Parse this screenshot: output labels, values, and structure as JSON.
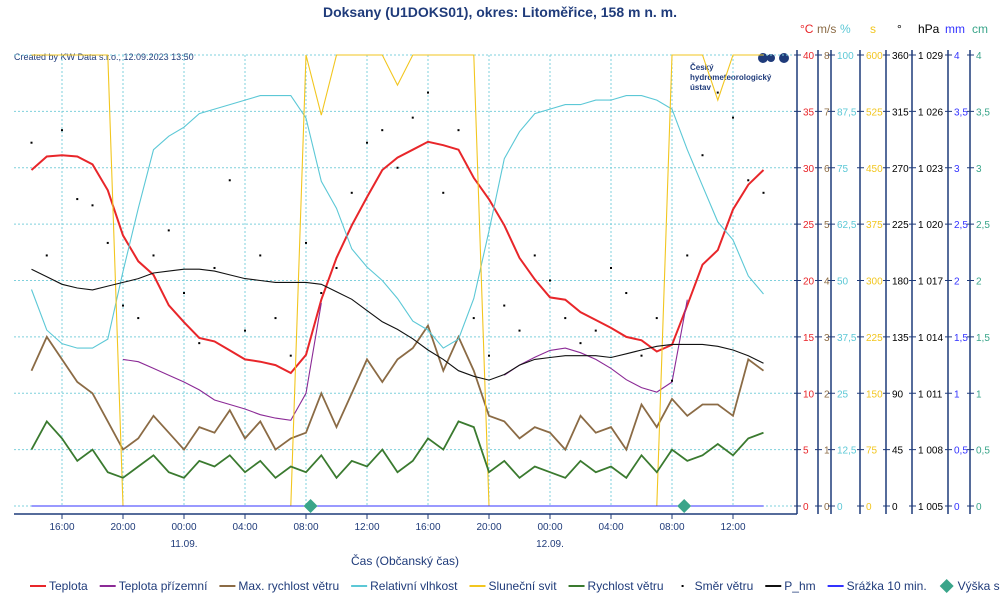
{
  "title": "Doksany (U1DOKS01), okres: Litoměřice, 158 m n. m.",
  "created": "Created by KW Data s.r.o., 12.09.2023 13:50",
  "logo": {
    "line1": "Český",
    "line2": "hydrometeorologický",
    "line3": "ústav"
  },
  "chart_data": {
    "type": "line",
    "xlabel": "Čas (Občanský čas)",
    "x_hours_from_2023_09_10_00": [
      14,
      15,
      16,
      17,
      18,
      19,
      20,
      21,
      22,
      23,
      24,
      25,
      26,
      27,
      28,
      29,
      30,
      31,
      32,
      33,
      34,
      35,
      36,
      37,
      38,
      39,
      40,
      41,
      42,
      43,
      44,
      45,
      46,
      47,
      48,
      49,
      50,
      51,
      52,
      53,
      54,
      55,
      56,
      57,
      58,
      59,
      60,
      61,
      62
    ],
    "x_ticks": [
      {
        "t": 16,
        "label": "16:00"
      },
      {
        "t": 20,
        "label": "20:00"
      },
      {
        "t": 24,
        "label": "00:00",
        "date": "11.09."
      },
      {
        "t": 28,
        "label": "04:00"
      },
      {
        "t": 32,
        "label": "08:00"
      },
      {
        "t": 36,
        "label": "12:00"
      },
      {
        "t": 40,
        "label": "16:00"
      },
      {
        "t": 44,
        "label": "20:00"
      },
      {
        "t": 48,
        "label": "00:00",
        "date": "12.09."
      },
      {
        "t": 52,
        "label": "04:00"
      },
      {
        "t": 56,
        "label": "08:00"
      },
      {
        "t": 60,
        "label": "12:00"
      }
    ],
    "axes": [
      {
        "unit": "°C",
        "color": "#e8262a",
        "min": 0,
        "max": 40,
        "ticks": [
          "0",
          "5",
          "10",
          "15",
          "20",
          "25",
          "30",
          "35",
          "40"
        ]
      },
      {
        "unit": "m/s",
        "color": "#8b6b45",
        "min": 0,
        "max": 8,
        "ticks": [
          "0",
          "1",
          "2",
          "3",
          "4",
          "5",
          "6",
          "7",
          "8"
        ]
      },
      {
        "unit": "%",
        "color": "#5cc8d6",
        "min": 0,
        "max": 100,
        "ticks": [
          "0",
          "12,5",
          "25",
          "37,5",
          "50",
          "62,5",
          "75",
          "87,5",
          "100"
        ]
      },
      {
        "unit": "s",
        "color": "#f2c61f",
        "min": 0,
        "max": 600,
        "ticks": [
          "0",
          "75",
          "150",
          "225",
          "300",
          "375",
          "450",
          "525",
          "600"
        ]
      },
      {
        "unit": "°",
        "color": "#000000",
        "min": 0,
        "max": 360,
        "ticks": [
          "0",
          "45",
          "90",
          "135",
          "180",
          "225",
          "270",
          "315",
          "360"
        ]
      },
      {
        "unit": "hPa",
        "color": "#000000",
        "min": 1005,
        "max": 1029,
        "ticks": [
          "1 005",
          "1 008",
          "1 011",
          "1 014",
          "1 017",
          "1 020",
          "1 023",
          "1 026",
          "1 029"
        ]
      },
      {
        "unit": "mm",
        "color": "#3333ff",
        "min": 0,
        "max": 4,
        "ticks": [
          "0",
          "0,5",
          "1",
          "1,5",
          "2",
          "2,5",
          "3",
          "3,5",
          "4"
        ]
      },
      {
        "unit": "cm",
        "color": "#3aa58a",
        "min": 0,
        "max": 4,
        "ticks": [
          "0",
          "0,5",
          "1",
          "1,5",
          "2",
          "2,5",
          "3",
          "3,5",
          "4"
        ]
      }
    ],
    "series": [
      {
        "name": "Teplota",
        "axis": 0,
        "color": "#e8262a",
        "kind": "line",
        "values": [
          29.8,
          31.0,
          31.1,
          31.0,
          30.3,
          28,
          24,
          21.7,
          20.5,
          17.8,
          16.3,
          14.9,
          14.6,
          13.8,
          13,
          12.8,
          12.5,
          11.8,
          13.4,
          18.3,
          22,
          24.9,
          27.4,
          29.8,
          30.9,
          31.6,
          32.3,
          32,
          31.6,
          29.1,
          27.2,
          24.9,
          22,
          20.1,
          18.5,
          18.3,
          17.2,
          16.5,
          15.8,
          15,
          14.7,
          13.7,
          14.3,
          17.8,
          21.4,
          22.7,
          26.3,
          28.5,
          29.8
        ]
      },
      {
        "name": "Teplota přízemní",
        "axis": 0,
        "color": "#8b2a96",
        "kind": "line",
        "values": [
          null,
          null,
          null,
          null,
          null,
          null,
          13,
          12.8,
          12.2,
          11.6,
          11,
          10.3,
          9.4,
          9,
          8.6,
          8.1,
          7.8,
          7.6,
          10,
          18,
          null,
          null,
          null,
          null,
          null,
          null,
          null,
          null,
          null,
          null,
          null,
          11.6,
          12.5,
          13.2,
          13.8,
          14,
          13.6,
          13,
          12.2,
          11.2,
          10.5,
          10.1,
          11,
          18.3,
          null,
          null,
          null,
          null,
          null
        ]
      },
      {
        "name": "Max. rychlost větru",
        "axis": 1,
        "color": "#8b6b45",
        "kind": "line",
        "values": [
          2.4,
          3.0,
          2.6,
          2.2,
          2.0,
          1.5,
          1.0,
          1.2,
          1.6,
          1.3,
          1.0,
          1.4,
          1.3,
          1.7,
          1.2,
          1.5,
          1.0,
          1.2,
          1.3,
          2.0,
          1.4,
          2.0,
          2.6,
          2.2,
          2.6,
          2.8,
          3.2,
          2.4,
          3.0,
          2.4,
          1.6,
          1.5,
          1.2,
          1.4,
          1.3,
          1.0,
          1.6,
          1.3,
          1.4,
          1.0,
          1.8,
          1.4,
          1.9,
          1.6,
          1.8,
          1.8,
          1.6,
          2.6,
          2.4
        ]
      },
      {
        "name": "Relativní vlhkost",
        "axis": 2,
        "color": "#5cc8d6",
        "kind": "line",
        "values": [
          48,
          39,
          36,
          35,
          35,
          37,
          52,
          66,
          79,
          82,
          84,
          87,
          88,
          89,
          90,
          91,
          91,
          91,
          86,
          72,
          66,
          57,
          53,
          50,
          46,
          41,
          39,
          35,
          37,
          46,
          61,
          77,
          83,
          87,
          88,
          89,
          89,
          90,
          90,
          91,
          91,
          90,
          88,
          79,
          71,
          63,
          59,
          51,
          47
        ]
      },
      {
        "name": "Sluneční svit",
        "axis": 3,
        "color": "#f2c61f",
        "kind": "line",
        "values": [
          600,
          600,
          600,
          600,
          600,
          600,
          0,
          0,
          0,
          0,
          0,
          0,
          0,
          0,
          0,
          0,
          0,
          0,
          600,
          520,
          600,
          600,
          600,
          600,
          560,
          600,
          600,
          600,
          600,
          600,
          0,
          0,
          0,
          0,
          0,
          0,
          0,
          0,
          0,
          0,
          0,
          0,
          600,
          600,
          600,
          540,
          600,
          600,
          600
        ]
      },
      {
        "name": "Rychlost větru",
        "axis": 1,
        "color": "#3a7a2f",
        "kind": "line",
        "values": [
          1.0,
          1.5,
          1.2,
          0.8,
          1.0,
          0.6,
          0.5,
          0.7,
          0.9,
          0.6,
          0.5,
          0.8,
          0.7,
          0.9,
          0.6,
          0.8,
          0.5,
          0.7,
          0.6,
          0.9,
          0.5,
          0.8,
          0.7,
          1.0,
          0.6,
          0.8,
          1.2,
          1.0,
          1.5,
          1.4,
          0.6,
          0.8,
          0.5,
          0.7,
          0.6,
          0.5,
          0.8,
          0.6,
          0.7,
          0.5,
          0.9,
          0.6,
          1.0,
          0.8,
          0.9,
          1.1,
          0.9,
          1.2,
          1.3
        ]
      },
      {
        "name": "Směr větru",
        "axis": 4,
        "color": "#000000",
        "kind": "dots",
        "values": [
          290,
          200,
          300,
          245,
          240,
          210,
          160,
          150,
          200,
          220,
          170,
          130,
          190,
          260,
          140,
          200,
          150,
          120,
          210,
          170,
          190,
          250,
          290,
          300,
          270,
          310,
          330,
          250,
          300,
          150,
          120,
          160,
          140,
          200,
          180,
          150,
          130,
          140,
          190,
          170,
          120,
          150,
          100,
          200,
          280,
          330,
          310,
          260,
          250
        ]
      },
      {
        "name": "P_hm",
        "axis": 5,
        "color": "#111111",
        "kind": "line",
        "values": [
          1017.6,
          1017.2,
          1016.8,
          1016.6,
          1016.5,
          1016.7,
          1016.9,
          1017.1,
          1017.4,
          1017.5,
          1017.6,
          1017.6,
          1017.5,
          1017.3,
          1017.1,
          1017.0,
          1016.9,
          1016.9,
          1016.9,
          1016.8,
          1016.4,
          1016.0,
          1015.4,
          1014.8,
          1014.4,
          1013.9,
          1013.3,
          1012.8,
          1012.2,
          1011.9,
          1011.7,
          1012.0,
          1012.5,
          1012.8,
          1012.9,
          1013.0,
          1013.0,
          1013.0,
          1012.9,
          1013.1,
          1013.3,
          1013.5,
          1013.6,
          1013.6,
          1013.6,
          1013.5,
          1013.3,
          1013.0,
          1012.6
        ]
      },
      {
        "name": "Srážka 10 min.",
        "axis": 6,
        "color": "#3333ff",
        "kind": "line",
        "values": [
          0,
          0,
          0,
          0,
          0,
          0,
          0,
          0,
          0,
          0,
          0,
          0,
          0,
          0,
          0,
          0,
          0,
          0,
          0,
          0,
          0,
          0,
          0,
          0,
          0,
          0,
          0,
          0,
          0,
          0,
          0,
          0,
          0,
          0,
          0,
          0,
          0,
          0,
          0,
          0,
          0,
          0,
          0,
          0,
          0,
          0,
          0,
          0,
          0
        ]
      },
      {
        "name": "Výška sněhu",
        "axis": 7,
        "color": "#3aa58a",
        "kind": "diamond",
        "points": [
          {
            "t": 32.3,
            "v": 0
          },
          {
            "t": 56.8,
            "v": 0
          }
        ]
      }
    ]
  }
}
